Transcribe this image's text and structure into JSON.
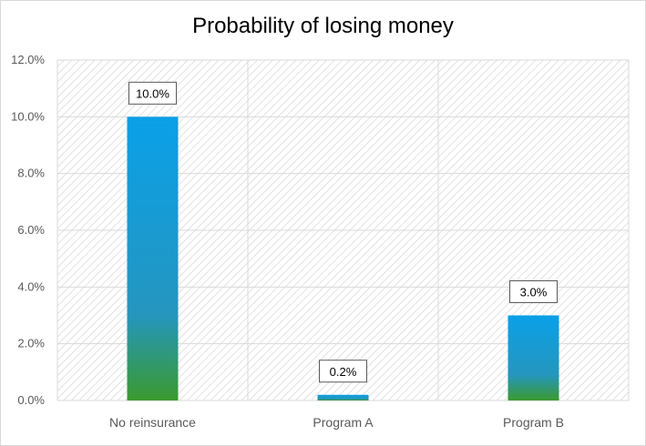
{
  "chart_data": {
    "type": "bar",
    "title": "Probability of losing money",
    "categories": [
      "No reinsurance",
      "Program A",
      "Program B"
    ],
    "values": [
      10.0,
      0.2,
      3.0
    ],
    "data_labels": [
      "10.0%",
      "0.2%",
      "3.0%"
    ],
    "xlabel": "",
    "ylabel": "",
    "ylim": [
      0,
      12
    ],
    "yticks": [
      "0.0%",
      "2.0%",
      "4.0%",
      "6.0%",
      "8.0%",
      "10.0%",
      "12.0%"
    ],
    "grid": true,
    "legend": "none",
    "colors": {
      "bar_top": "#0aa0e8",
      "bar_mid": "#2596be",
      "bar_bottom": "#3a9a2e",
      "grid": "#d9d9d9",
      "hatch": "#cfcfcf"
    }
  }
}
